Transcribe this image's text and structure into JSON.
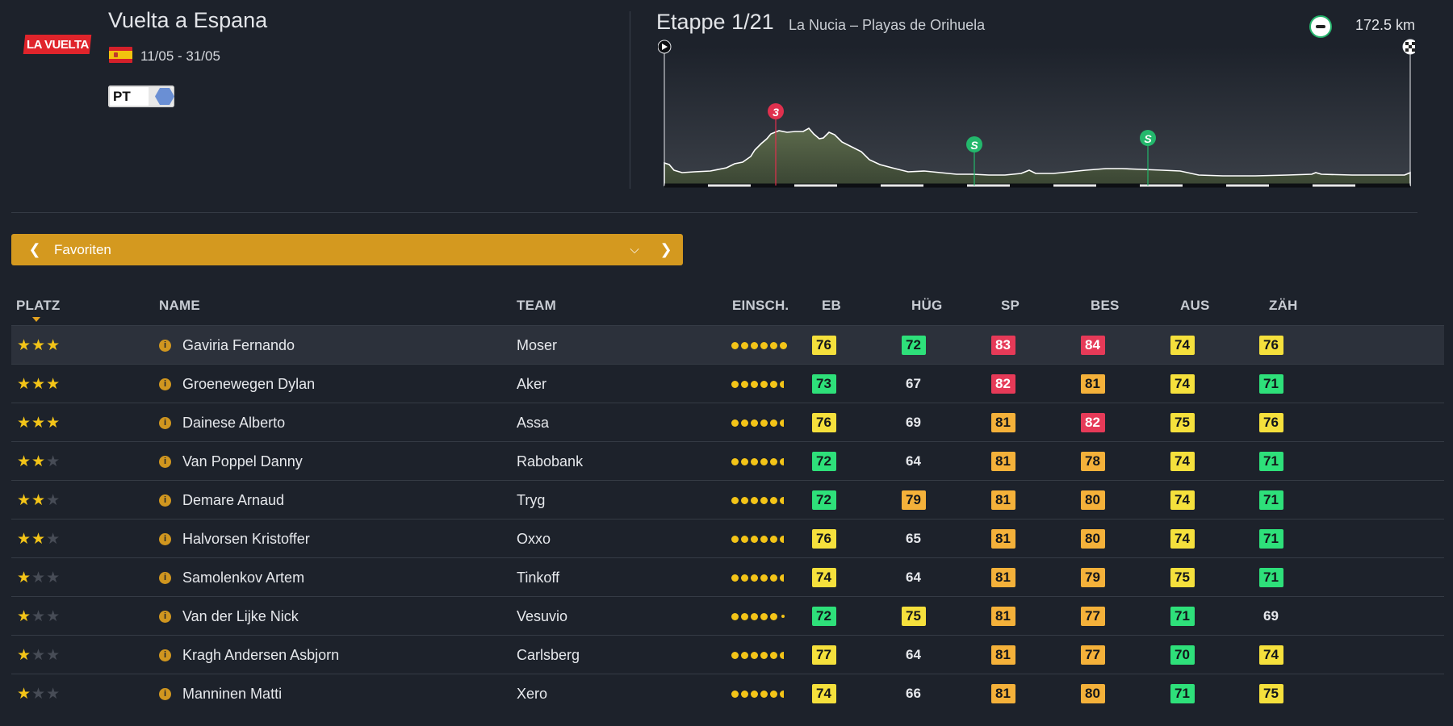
{
  "race": {
    "logo_text": "LA VUELTA",
    "title": "Vuelta a Espana",
    "dates": "11/05 - 31/05",
    "category": "PT"
  },
  "stage": {
    "label": "Etappe 1/21",
    "route": "La Nucia – Playas de Orihuela",
    "distance": "172.5 km",
    "markers": [
      {
        "symbol": "3",
        "type": "climb",
        "color": "#e0304e"
      },
      {
        "symbol": "S",
        "type": "sprint",
        "color": "#23b86c"
      },
      {
        "symbol": "S",
        "type": "sprint",
        "color": "#23b86c"
      }
    ]
  },
  "filter": {
    "label": "Favoriten"
  },
  "table": {
    "headers": {
      "platz": "PLATZ",
      "name": "NAME",
      "team": "TEAM",
      "einsch": "EINSCH.",
      "eb": "EB",
      "hug": "HÜG",
      "sp": "SP",
      "bes": "BES",
      "aus": "AUS",
      "zah": "ZÄH"
    },
    "rows": [
      {
        "stars": 3,
        "name": "Gaviria Fernando",
        "team": "Moser",
        "form": 6,
        "stats": [
          [
            76,
            "yellow"
          ],
          [
            72,
            "green"
          ],
          [
            83,
            "red"
          ],
          [
            84,
            "red"
          ],
          [
            74,
            "yellow"
          ],
          [
            76,
            "yellow"
          ]
        ]
      },
      {
        "stars": 3,
        "name": "Groenewegen Dylan",
        "team": "Aker",
        "form": 5.5,
        "stats": [
          [
            73,
            "green"
          ],
          [
            67,
            "plain"
          ],
          [
            82,
            "red"
          ],
          [
            81,
            "orange"
          ],
          [
            74,
            "yellow"
          ],
          [
            71,
            "green"
          ]
        ]
      },
      {
        "stars": 3,
        "name": "Dainese Alberto",
        "team": "Assa",
        "form": 5.5,
        "stats": [
          [
            76,
            "yellow"
          ],
          [
            69,
            "plain"
          ],
          [
            81,
            "orange"
          ],
          [
            82,
            "red"
          ],
          [
            75,
            "yellow"
          ],
          [
            76,
            "yellow"
          ]
        ]
      },
      {
        "stars": 2,
        "name": "Van Poppel Danny",
        "team": "Rabobank",
        "form": 5.5,
        "stats": [
          [
            72,
            "green"
          ],
          [
            64,
            "plain"
          ],
          [
            81,
            "orange"
          ],
          [
            78,
            "orange"
          ],
          [
            74,
            "yellow"
          ],
          [
            71,
            "green"
          ]
        ]
      },
      {
        "stars": 2,
        "name": "Demare Arnaud",
        "team": "Tryg",
        "form": 5.5,
        "stats": [
          [
            72,
            "green"
          ],
          [
            79,
            "orange"
          ],
          [
            81,
            "orange"
          ],
          [
            80,
            "orange"
          ],
          [
            74,
            "yellow"
          ],
          [
            71,
            "green"
          ]
        ]
      },
      {
        "stars": 2,
        "name": "Halvorsen Kristoffer",
        "team": "Oxxo",
        "form": 5.5,
        "stats": [
          [
            76,
            "yellow"
          ],
          [
            65,
            "plain"
          ],
          [
            81,
            "orange"
          ],
          [
            80,
            "orange"
          ],
          [
            74,
            "yellow"
          ],
          [
            71,
            "green"
          ]
        ]
      },
      {
        "stars": 1,
        "name": "Samolenkov Artem",
        "team": "Tinkoff",
        "form": 5.5,
        "stats": [
          [
            74,
            "yellow"
          ],
          [
            64,
            "plain"
          ],
          [
            81,
            "orange"
          ],
          [
            79,
            "orange"
          ],
          [
            75,
            "yellow"
          ],
          [
            71,
            "green"
          ]
        ]
      },
      {
        "stars": 1,
        "name": "Van der Lijke Nick",
        "team": "Vesuvio",
        "form": 5.1,
        "stats": [
          [
            72,
            "green"
          ],
          [
            75,
            "yellow"
          ],
          [
            81,
            "orange"
          ],
          [
            77,
            "orange"
          ],
          [
            71,
            "green"
          ],
          [
            69,
            "plain"
          ]
        ]
      },
      {
        "stars": 1,
        "name": "Kragh Andersen Asbjorn",
        "team": "Carlsberg",
        "form": 5.5,
        "stats": [
          [
            77,
            "yellow"
          ],
          [
            64,
            "plain"
          ],
          [
            81,
            "orange"
          ],
          [
            77,
            "orange"
          ],
          [
            70,
            "green"
          ],
          [
            74,
            "yellow"
          ]
        ]
      },
      {
        "stars": 1,
        "name": "Manninen Matti",
        "team": "Xero",
        "form": 5.5,
        "stats": [
          [
            74,
            "yellow"
          ],
          [
            66,
            "plain"
          ],
          [
            81,
            "orange"
          ],
          [
            80,
            "orange"
          ],
          [
            71,
            "green"
          ],
          [
            75,
            "yellow"
          ]
        ]
      }
    ]
  }
}
